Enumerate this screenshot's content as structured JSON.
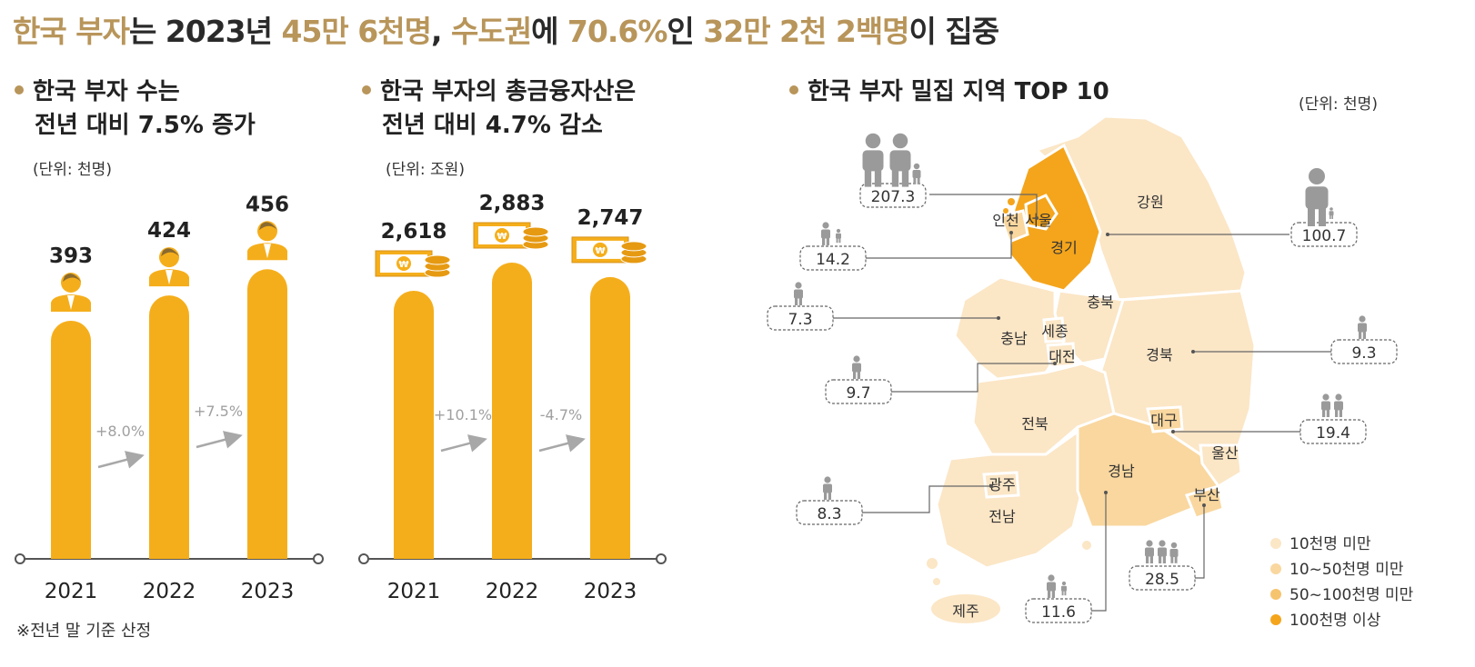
{
  "headline": [
    {
      "text": "한국 부자",
      "hl": true
    },
    {
      "text": "는 2023년 ",
      "hl": false
    },
    {
      "text": "45만 6천명",
      "hl": true
    },
    {
      "text": ", ",
      "hl": false
    },
    {
      "text": "수도권",
      "hl": true
    },
    {
      "text": "에 ",
      "hl": false
    },
    {
      "text": "70.6%",
      "hl": true
    },
    {
      "text": "인 ",
      "hl": false
    },
    {
      "text": "32만 2천 2백명",
      "hl": true
    },
    {
      "text": "이 집중",
      "hl": false
    }
  ],
  "chart1": {
    "line1": "한국 부자 수는",
    "line2": "전년 대비 7.5% 증가",
    "unit": "(단위: 천명)"
  },
  "chart2": {
    "line1": "한국 부자의 총금융자산은",
    "line2": "전년 대비 4.7% 감소",
    "unit": "(단위: 조원)"
  },
  "map": {
    "title": "한국 부자 밀집 지역 TOP 10",
    "unit": "(단위: 천명)"
  },
  "footnote": "※전년 말 기준 산정",
  "colors": {
    "accent": "#b8955a",
    "bar": "#f5ae1b",
    "level1": "#fbe6c6",
    "level2": "#f9d79f",
    "level3": "#f6c46e",
    "level4": "#f4a51c",
    "arrow": "#a8a8a8",
    "person": "#9a9a9a"
  },
  "chart_data": [
    {
      "type": "bar",
      "title": "한국 부자 수는 전년 대비 7.5% 증가",
      "unit": "(단위: 천명)",
      "categories": [
        "2021",
        "2022",
        "2023"
      ],
      "values": [
        393,
        424,
        456
      ],
      "labels": [
        "393",
        "424",
        "456"
      ],
      "changes": [
        "+8.0%",
        "+7.5%"
      ],
      "icon": "person-icon"
    },
    {
      "type": "bar",
      "title": "한국 부자의 총금융자산은 전년 대비 4.7% 감소",
      "unit": "(단위: 조원)",
      "categories": [
        "2021",
        "2022",
        "2023"
      ],
      "values": [
        2618,
        2883,
        2747
      ],
      "labels": [
        "2,618",
        "2,883",
        "2,747"
      ],
      "changes": [
        "+10.1%",
        "-4.7%"
      ],
      "icon": "money-icon"
    }
  ],
  "regions": [
    {
      "name": "강원",
      "level": 1
    },
    {
      "name": "경기",
      "level": 4
    },
    {
      "name": "서울",
      "level": 4
    },
    {
      "name": "인천",
      "level": 2
    },
    {
      "name": "충북",
      "level": 1
    },
    {
      "name": "충남",
      "level": 1
    },
    {
      "name": "세종",
      "level": 1
    },
    {
      "name": "대전",
      "level": 1
    },
    {
      "name": "경북",
      "level": 1
    },
    {
      "name": "대구",
      "level": 2
    },
    {
      "name": "울산",
      "level": 1
    },
    {
      "name": "전북",
      "level": 1
    },
    {
      "name": "광주",
      "level": 1
    },
    {
      "name": "전남",
      "level": 1
    },
    {
      "name": "경남",
      "level": 2
    },
    {
      "name": "부산",
      "level": 2
    },
    {
      "name": "제주",
      "level": 1
    }
  ],
  "callouts": [
    "207.3",
    "100.7",
    "14.2",
    "7.3",
    "9.3",
    "9.7",
    "19.4",
    "8.3",
    "28.5",
    "11.6"
  ],
  "legend": [
    "10천명 미만",
    "10~50천명 미만",
    "50~100천명 미만",
    "100천명 이상"
  ]
}
